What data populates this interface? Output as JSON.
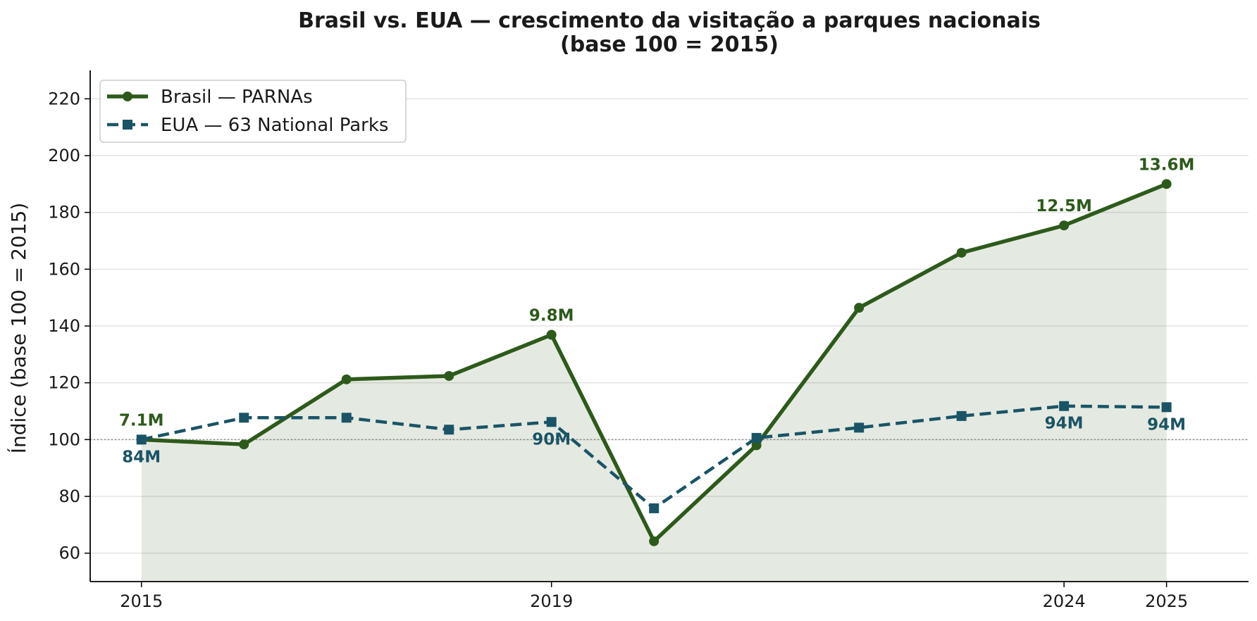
{
  "chart_data": {
    "type": "line",
    "title": "Brasil vs. EUA — crescimento da visitação a parques nacionais",
    "subtitle": "(base 100 = 2015)",
    "xlabel": "",
    "ylabel": "Índice (base 100 = 2015)",
    "x": [
      2015,
      2016,
      2017,
      2018,
      2019,
      2020,
      2021,
      2022,
      2023,
      2024,
      2025
    ],
    "x_tick_labels": [
      "2015",
      "2019",
      "2024",
      "2025"
    ],
    "x_tick_values": [
      2015,
      2019,
      2024,
      2025
    ],
    "xlim": [
      2014.5,
      2025.8
    ],
    "ylim": [
      50,
      230
    ],
    "y_ticks": [
      60,
      80,
      100,
      120,
      140,
      160,
      180,
      200,
      220
    ],
    "grid": "horizontal",
    "reference_line": 100,
    "legend_position": "top-left",
    "series": [
      {
        "name": "Brasil — PARNAs",
        "color": "#2d5a1b",
        "style": "solid",
        "marker": "circle",
        "fill": true,
        "values": [
          100,
          98.3,
          121.2,
          122.4,
          136.9,
          64.2,
          98.0,
          146.4,
          165.8,
          175.4,
          190.0
        ],
        "annotations": [
          {
            "x": 2015,
            "text": "7.1M"
          },
          {
            "x": 2019,
            "text": "9.8M"
          },
          {
            "x": 2024,
            "text": "12.5M"
          },
          {
            "x": 2025,
            "text": "13.6M"
          }
        ]
      },
      {
        "name": "EUA — 63 National Parks",
        "color": "#1a5466",
        "style": "dashed",
        "marker": "square",
        "fill": false,
        "values": [
          100,
          107.7,
          107.7,
          103.5,
          106.2,
          75.8,
          100.6,
          104.2,
          108.3,
          111.8,
          111.4
        ],
        "annotations": [
          {
            "x": 2015,
            "text": "84M"
          },
          {
            "x": 2019,
            "text": "90M"
          },
          {
            "x": 2024,
            "text": "94M"
          },
          {
            "x": 2025,
            "text": "94M"
          }
        ]
      }
    ]
  }
}
